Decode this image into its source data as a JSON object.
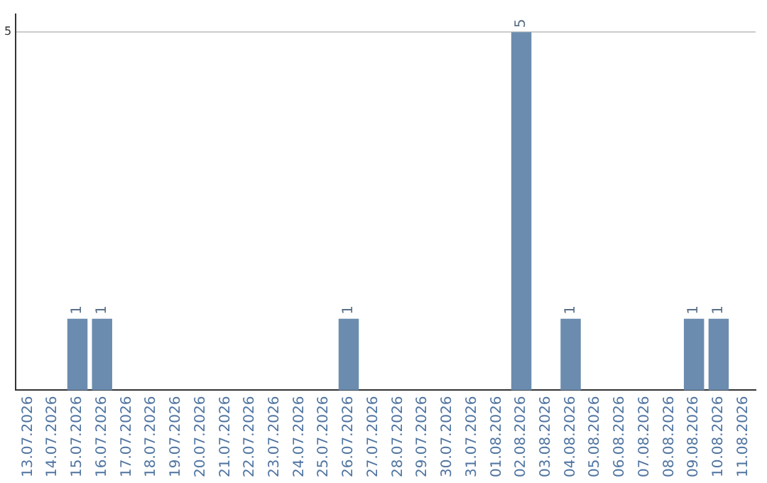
{
  "chart_data": {
    "type": "bar",
    "categories": [
      "13.07.2026",
      "14.07.2026",
      "15.07.2026",
      "16.07.2026",
      "17.07.2026",
      "18.07.2026",
      "19.07.2026",
      "20.07.2026",
      "21.07.2026",
      "22.07.2026",
      "23.07.2026",
      "24.07.2026",
      "25.07.2026",
      "26.07.2026",
      "27.07.2026",
      "28.07.2026",
      "29.07.2026",
      "30.07.2026",
      "31.07.2026",
      "01.08.2026",
      "02.08.2026",
      "03.08.2026",
      "04.08.2026",
      "05.08.2026",
      "06.08.2026",
      "07.08.2026",
      "08.08.2026",
      "09.08.2026",
      "10.08.2026",
      "11.08.2026"
    ],
    "values": [
      0,
      0,
      1,
      1,
      0,
      0,
      0,
      0,
      0,
      0,
      0,
      0,
      0,
      1,
      0,
      0,
      0,
      0,
      0,
      0,
      5,
      0,
      1,
      0,
      0,
      0,
      0,
      1,
      1,
      0
    ],
    "value_labels": [
      null,
      null,
      "1",
      "1",
      null,
      null,
      null,
      null,
      null,
      null,
      null,
      null,
      null,
      "1",
      null,
      null,
      null,
      null,
      null,
      null,
      "5",
      null,
      "1",
      null,
      null,
      null,
      null,
      "1",
      "1",
      null
    ],
    "color": "#6b8cae",
    "ylim": [
      0,
      5.25
    ],
    "yticks": [
      5
    ],
    "grid": "y",
    "legend": false
  }
}
